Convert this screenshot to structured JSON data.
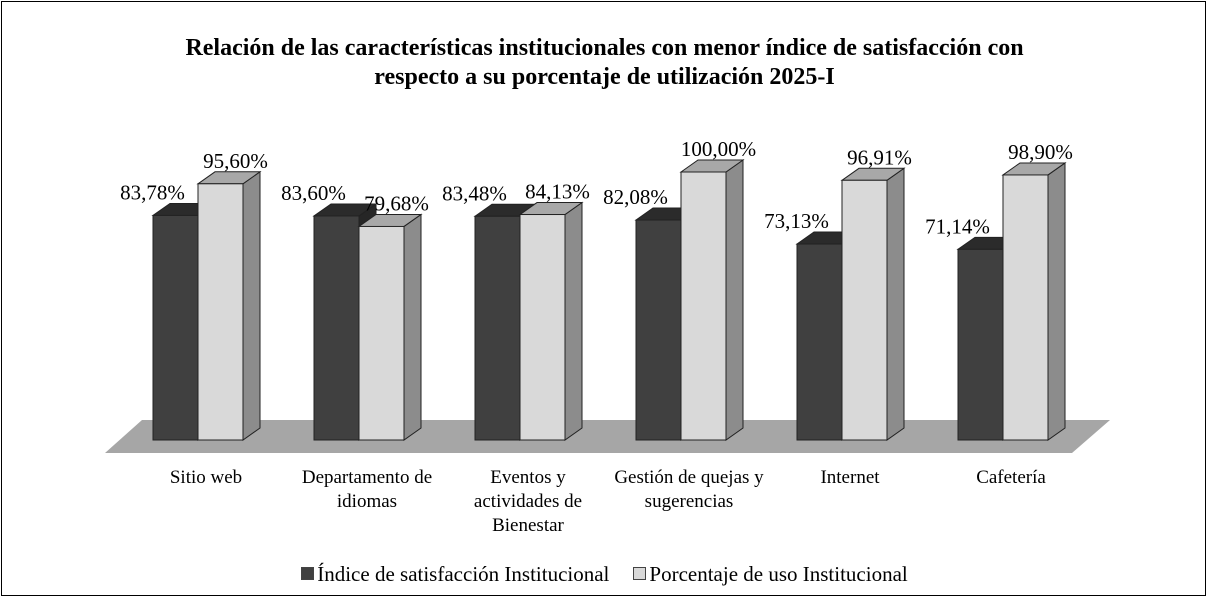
{
  "chart_data": {
    "type": "bar3d",
    "title": "Relación de las características institucionales con  menor índice de satisfacción con respecto a su porcentaje de utilización 2025-I",
    "categories": [
      "Sitio web",
      "Departamento de idiomas",
      "Eventos y actividades de Bienestar",
      "Gestión de quejas y sugerencias",
      "Internet",
      "Cafetería"
    ],
    "series": [
      {
        "name": "Índice de satisfacción Institucional",
        "color": "#404040",
        "values": [
          83.78,
          83.6,
          83.48,
          82.08,
          73.13,
          71.14
        ],
        "value_labels": [
          "83,78%",
          "83,60%",
          "83,48%",
          "82,08%",
          "73,13%",
          "71,14%"
        ]
      },
      {
        "name": "Porcentaje de uso Institucional",
        "color": "#d9d9d9",
        "values": [
          95.6,
          79.68,
          84.13,
          100,
          96.91,
          98.9
        ],
        "value_labels": [
          "95,60%",
          "79,68%",
          "84,13%",
          "100,00%",
          "96,91%",
          "98,90%"
        ]
      }
    ],
    "ylim": [
      0,
      100
    ]
  }
}
